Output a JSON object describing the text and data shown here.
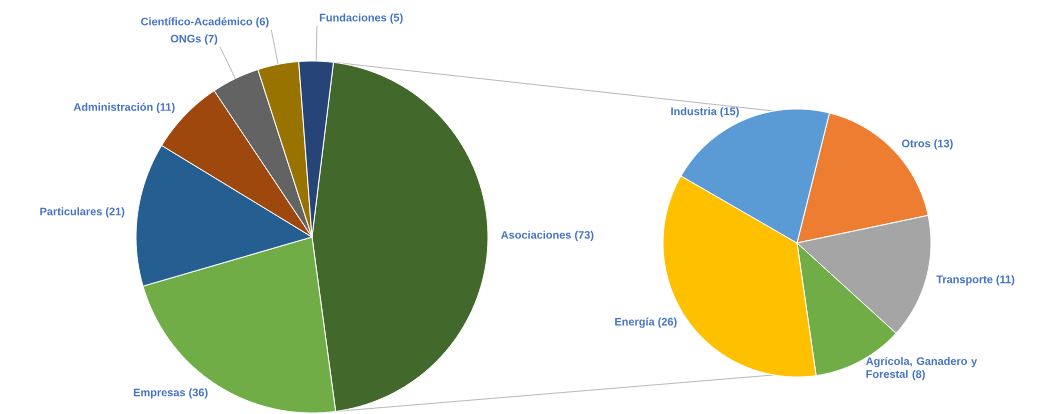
{
  "chart_data": [
    {
      "type": "pie",
      "categories": [
        "Asociaciones",
        "Empresas",
        "Particulares",
        "Administración",
        "ONGs",
        "Científico-Académico",
        "Fundaciones"
      ],
      "values": [
        73,
        36,
        21,
        11,
        7,
        6,
        5
      ],
      "value_labels": [
        "(73)",
        "(36)",
        "(21)",
        "(11)",
        "(7)",
        "(6)",
        "(5)"
      ],
      "colors": [
        "#43682b",
        "#70ad47",
        "#255e91",
        "#9e480e",
        "#636363",
        "#997300",
        "#264478"
      ]
    },
    {
      "type": "pie",
      "categories": [
        "Otros",
        "Transporte",
        "Agrícola, Ganadero y Forestal",
        "Energía",
        "Industria"
      ],
      "values": [
        13,
        11,
        8,
        26,
        15
      ],
      "value_labels": [
        "(13)",
        "(11)",
        "(8)",
        "(26)",
        "(15)"
      ],
      "colors": [
        "#ed7d31",
        "#a5a5a5",
        "#70ad47",
        "#ffc000",
        "#5b9bd5"
      ]
    }
  ]
}
